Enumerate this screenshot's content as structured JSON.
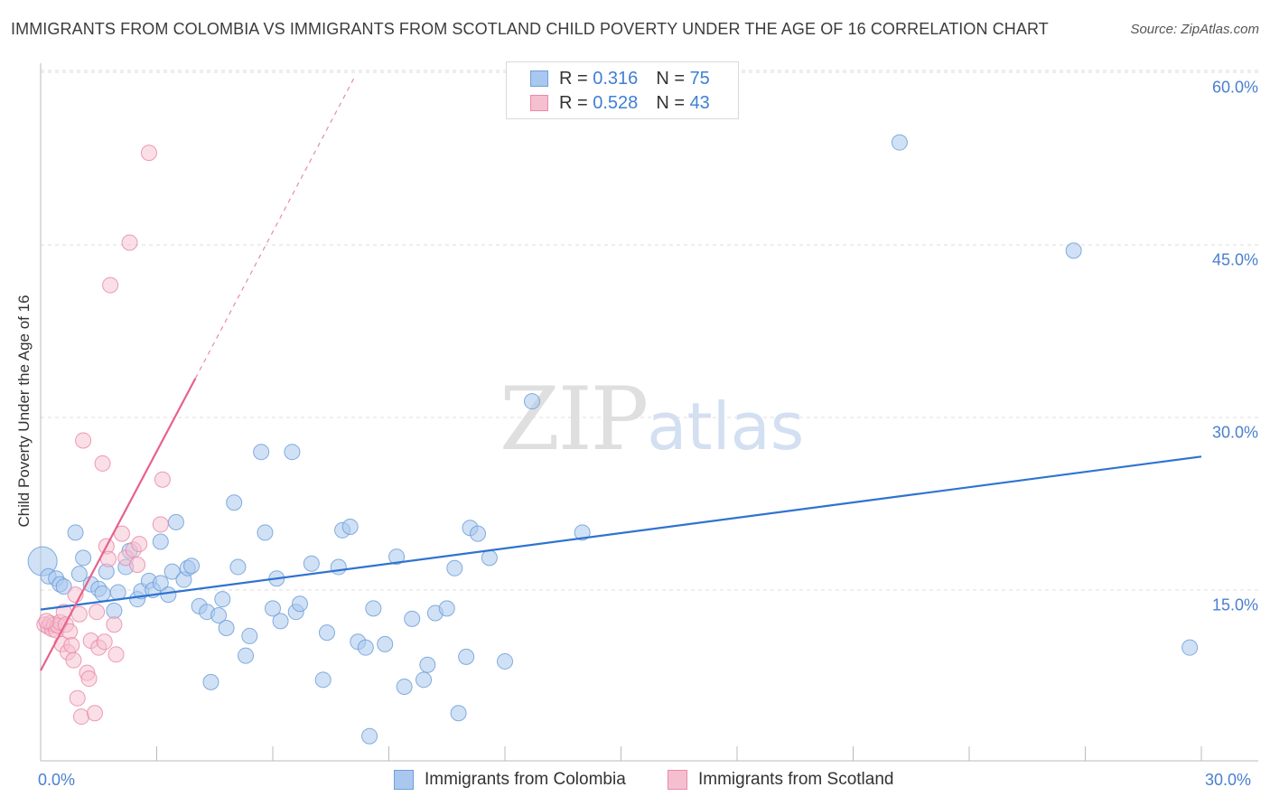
{
  "title": "IMMIGRANTS FROM COLOMBIA VS IMMIGRANTS FROM SCOTLAND CHILD POVERTY UNDER THE AGE OF 16 CORRELATION CHART",
  "source": "Source: ZipAtlas.com",
  "watermark": {
    "zip": "ZIP",
    "atlas": "atlas"
  },
  "colors": {
    "colombia_fill": "#a9c8ef",
    "colombia_stroke": "#6f9fd8",
    "colombia_line": "#2f73d0",
    "scotland_fill": "#f6bfd0",
    "scotland_stroke": "#e98aa9",
    "scotland_line": "#e8618c",
    "grid": "#dddddd",
    "tick_label": "#4a7fd0"
  },
  "legend": {
    "rows": [
      {
        "r_label": "R =",
        "r_value": "0.316",
        "n_label": "N =",
        "n_value": "75"
      },
      {
        "r_label": "R =",
        "r_value": "0.528",
        "n_label": "N =",
        "n_value": "43"
      }
    ]
  },
  "chart_data": {
    "type": "scatter",
    "title": "IMMIGRANTS FROM COLOMBIA VS IMMIGRANTS FROM SCOTLAND CHILD POVERTY UNDER THE AGE OF 16 CORRELATION CHART",
    "xlabel": "",
    "ylabel": "Child Poverty Under the Age of 16",
    "xlim": [
      0,
      30
    ],
    "ylim": [
      0,
      62
    ],
    "x_tick_labels": [
      "0.0%",
      "30.0%"
    ],
    "y_ticks": [
      15,
      30,
      45,
      60
    ],
    "y_tick_labels": [
      "15.0%",
      "30.0%",
      "45.0%",
      "60.0%"
    ],
    "grid": true,
    "legend_position": "top-center",
    "series": [
      {
        "name": "Immigrants from Colombia",
        "color": "#a9c8ef",
        "trend": {
          "x": [
            0,
            30
          ],
          "y": [
            13.3,
            26.6
          ]
        },
        "points": [
          [
            0.05,
            17.5
          ],
          [
            0.2,
            16.2
          ],
          [
            0.4,
            16.0
          ],
          [
            0.5,
            15.5
          ],
          [
            0.6,
            15.3
          ],
          [
            0.9,
            20.0
          ],
          [
            1.0,
            16.4
          ],
          [
            1.1,
            17.8
          ],
          [
            1.3,
            15.5
          ],
          [
            1.5,
            15.1
          ],
          [
            1.6,
            14.7
          ],
          [
            1.7,
            16.6
          ],
          [
            1.9,
            13.2
          ],
          [
            2.0,
            14.8
          ],
          [
            2.2,
            17.0
          ],
          [
            2.3,
            18.4
          ],
          [
            2.5,
            14.2
          ],
          [
            2.6,
            14.9
          ],
          [
            2.8,
            15.8
          ],
          [
            2.9,
            15.0
          ],
          [
            3.1,
            15.6
          ],
          [
            3.1,
            19.2
          ],
          [
            3.3,
            14.6
          ],
          [
            3.4,
            16.6
          ],
          [
            3.5,
            20.9
          ],
          [
            3.7,
            15.9
          ],
          [
            3.8,
            16.9
          ],
          [
            3.9,
            17.1
          ],
          [
            4.1,
            13.6
          ],
          [
            4.3,
            13.1
          ],
          [
            4.4,
            7.0
          ],
          [
            4.6,
            12.8
          ],
          [
            4.7,
            14.2
          ],
          [
            4.8,
            11.7
          ],
          [
            5.0,
            22.6
          ],
          [
            5.1,
            17.0
          ],
          [
            5.3,
            9.3
          ],
          [
            5.4,
            11.0
          ],
          [
            5.7,
            27.0
          ],
          [
            5.8,
            20.0
          ],
          [
            6.0,
            13.4
          ],
          [
            6.1,
            16.0
          ],
          [
            6.2,
            12.3
          ],
          [
            6.5,
            27.0
          ],
          [
            6.6,
            13.1
          ],
          [
            6.7,
            13.8
          ],
          [
            7.0,
            17.3
          ],
          [
            7.3,
            7.2
          ],
          [
            7.4,
            11.3
          ],
          [
            7.7,
            17.0
          ],
          [
            7.8,
            20.2
          ],
          [
            8.0,
            20.5
          ],
          [
            8.2,
            10.5
          ],
          [
            8.4,
            10.0
          ],
          [
            8.5,
            2.3
          ],
          [
            8.6,
            13.4
          ],
          [
            8.9,
            10.3
          ],
          [
            9.2,
            17.9
          ],
          [
            9.4,
            6.6
          ],
          [
            9.6,
            12.5
          ],
          [
            9.9,
            7.2
          ],
          [
            10.0,
            8.5
          ],
          [
            10.2,
            13.0
          ],
          [
            10.5,
            13.4
          ],
          [
            10.7,
            16.9
          ],
          [
            10.8,
            4.3
          ],
          [
            11.0,
            9.2
          ],
          [
            11.1,
            20.4
          ],
          [
            11.3,
            19.9
          ],
          [
            11.6,
            17.8
          ],
          [
            12.0,
            8.8
          ],
          [
            12.7,
            31.4
          ],
          [
            14.0,
            20.0
          ],
          [
            22.2,
            53.9
          ],
          [
            26.7,
            44.5
          ],
          [
            29.7,
            10.0
          ]
        ]
      },
      {
        "name": "Immigrants from Scotland",
        "color": "#f6bfd0",
        "trend": {
          "x": [
            0,
            4.0
          ],
          "y": [
            8.0,
            33.4
          ]
        },
        "trend_dashed": {
          "x": [
            4.0,
            8.1
          ],
          "y": [
            33.4,
            59.5
          ]
        },
        "points": [
          [
            0.1,
            12.0
          ],
          [
            0.2,
            11.8
          ],
          [
            0.25,
            12.1
          ],
          [
            0.3,
            11.6
          ],
          [
            0.35,
            12.0
          ],
          [
            0.4,
            11.5
          ],
          [
            0.45,
            11.9
          ],
          [
            0.5,
            12.2
          ],
          [
            0.55,
            10.3
          ],
          [
            0.6,
            13.1
          ],
          [
            0.65,
            12.0
          ],
          [
            0.7,
            9.6
          ],
          [
            0.75,
            11.4
          ],
          [
            0.8,
            10.2
          ],
          [
            0.85,
            8.9
          ],
          [
            0.9,
            14.6
          ],
          [
            0.95,
            5.6
          ],
          [
            1.0,
            12.9
          ],
          [
            1.05,
            4.0
          ],
          [
            1.1,
            28.0
          ],
          [
            1.2,
            7.8
          ],
          [
            1.25,
            7.3
          ],
          [
            1.3,
            10.6
          ],
          [
            1.4,
            4.3
          ],
          [
            1.45,
            13.1
          ],
          [
            1.5,
            10.0
          ],
          [
            1.6,
            26.0
          ],
          [
            1.65,
            10.5
          ],
          [
            1.7,
            18.8
          ],
          [
            1.75,
            17.7
          ],
          [
            1.8,
            41.5
          ],
          [
            1.9,
            12.0
          ],
          [
            1.95,
            9.4
          ],
          [
            2.1,
            19.9
          ],
          [
            2.2,
            17.8
          ],
          [
            2.3,
            45.2
          ],
          [
            2.4,
            18.5
          ],
          [
            2.5,
            17.2
          ],
          [
            2.55,
            19.0
          ],
          [
            2.8,
            53.0
          ],
          [
            3.1,
            20.7
          ],
          [
            3.15,
            24.6
          ],
          [
            0.15,
            12.3
          ]
        ]
      }
    ]
  },
  "bottom_legend": {
    "colombia_label": "Immigrants from Colombia",
    "scotland_label": "Immigrants from Scotland"
  }
}
